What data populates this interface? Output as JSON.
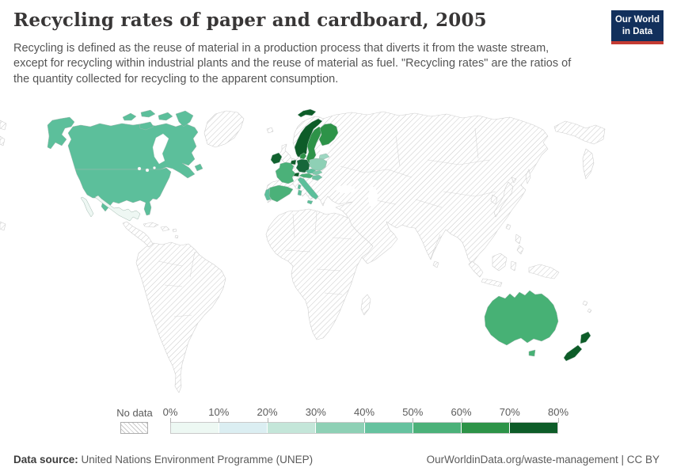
{
  "header": {
    "title": "Recycling rates of paper and cardboard, 2005",
    "subtitle": "Recycling is defined as the reuse of material in a production process that diverts it from the waste stream, except for recycling within industrial plants and the reuse of material as fuel. \"Recycling rates\" are the ratios of the quantity collected for recycling to the apparent consumption.",
    "logo": {
      "line1": "Our World",
      "line2": "in Data",
      "bg": "#12305c",
      "accent": "#c43b33"
    }
  },
  "legend": {
    "no_data_label": "No data",
    "tick_labels": [
      "0%",
      "10%",
      "20%",
      "30%",
      "40%",
      "50%",
      "60%",
      "70%",
      "80%"
    ],
    "bucket_colors": [
      "#edf8f3",
      "#dbeef2",
      "#c4e6d9",
      "#8ed0b5",
      "#66c29f",
      "#4bb179",
      "#2d9348",
      "#0d5c28"
    ]
  },
  "footer": {
    "source_label": "Data source:",
    "source_text": " United Nations Environment Programme (UNEP)",
    "right_text": "OurWorldinData.org/waste-management | CC BY"
  },
  "chart_data": {
    "type": "choropleth-map",
    "title": "Recycling rates of paper and cardboard, 2005",
    "unit": "%",
    "legend_range": [
      0,
      80
    ],
    "legend_step": 10,
    "no_data_style": "gray diagonal hatching",
    "series": [
      {
        "name": "Canada",
        "bucket": "40-50%"
      },
      {
        "name": "United States",
        "bucket": "40-50%"
      },
      {
        "name": "Mexico",
        "bucket": "0-10%"
      },
      {
        "name": "Ireland",
        "bucket": "70-80%"
      },
      {
        "name": "Norway",
        "bucket": "70-80%"
      },
      {
        "name": "Sweden",
        "bucket": "60-70%"
      },
      {
        "name": "Finland",
        "bucket": "60-70%"
      },
      {
        "name": "Denmark",
        "bucket": "60-70%"
      },
      {
        "name": "Netherlands",
        "bucket": "70-80%"
      },
      {
        "name": "Belgium",
        "bucket": "60-70%"
      },
      {
        "name": "Germany",
        "bucket": "60-70%"
      },
      {
        "name": "France",
        "bucket": "50-60%"
      },
      {
        "name": "Spain",
        "bucket": "50-60%"
      },
      {
        "name": "Portugal",
        "bucket": "40-50%"
      },
      {
        "name": "Switzerland",
        "bucket": "70-80%"
      },
      {
        "name": "Austria",
        "bucket": "50-60%"
      },
      {
        "name": "Italy",
        "bucket": "40-50%"
      },
      {
        "name": "Czechia",
        "bucket": "40-50%"
      },
      {
        "name": "Slovakia",
        "bucket": "30-40%"
      },
      {
        "name": "Hungary",
        "bucket": "40-50%"
      },
      {
        "name": "Poland",
        "bucket": "30-40%"
      },
      {
        "name": "Lithuania",
        "bucket": "30-40%"
      },
      {
        "name": "Australia",
        "bucket": "50-60%"
      },
      {
        "name": "New Zealand",
        "bucket": "70-80%"
      }
    ]
  },
  "map": {
    "hatch_line": "#c9c9c9",
    "nodata_border": "#cfcfcf",
    "data_border": "#9fb8ae",
    "countries": {
      "canada": "#5cbf9b",
      "usa": "#5cbf9b",
      "mexico": "#eef7f3",
      "ireland": "#11622f",
      "norway": "#0d5c28",
      "svalbard": "#0d5c28",
      "sweden": "#2d9348",
      "finland": "#2d9348",
      "denmark": "#2d9348",
      "netherlands": "#0d5c28",
      "belgium": "#17673a",
      "germany": "#17673a",
      "france": "#4bb179",
      "spain": "#4bb179",
      "portugal": "#5cbf9b",
      "switzerland": "#0d5c28",
      "austria": "#4bb179",
      "italy": "#5cbf9b",
      "czechia": "#5cbf9b",
      "slovakia": "#7ccaab",
      "hungary": "#6ec3a4",
      "poland": "#8ed0b5",
      "lithuania": "#9ed7c2",
      "australia": "#47b175",
      "tasmania": "#47b175",
      "new_zealand": "#0d5c28"
    }
  }
}
